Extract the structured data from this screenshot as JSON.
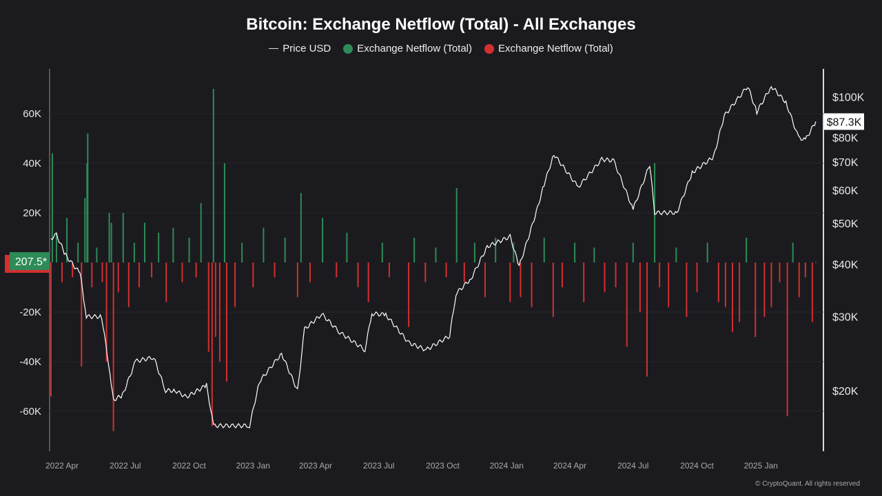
{
  "chart_data": {
    "type": "bar+line",
    "title": "Bitcoin: Exchange Netflow (Total) - All Exchanges",
    "legend": [
      "Price USD",
      "Exchange Netflow (Total)",
      "Exchange Netflow (Total)"
    ],
    "legend_placement": "top-center",
    "colors": {
      "price": "#ffffff",
      "inflow": "#2e8b57",
      "outflow": "#d32f2f",
      "background": "#1b1b1f"
    },
    "x_ticks": [
      "2022 Apr",
      "2022 Jul",
      "2022 Oct",
      "2023 Jan",
      "2023 Apr",
      "2023 Jul",
      "2023 Oct",
      "2024 Jan",
      "2024 Apr",
      "2024 Jul",
      "2024 Oct",
      "2025 Jan"
    ],
    "x_tick_dates": [
      "2022-04-01",
      "2022-07-01",
      "2022-10-01",
      "2023-01-01",
      "2023-04-01",
      "2023-07-01",
      "2023-10-01",
      "2024-01-01",
      "2024-04-01",
      "2024-07-01",
      "2024-10-01",
      "2025-01-01"
    ],
    "y_left_ticks": [
      "60K",
      "40K",
      "20K",
      "-20K",
      "-40K",
      "-60K"
    ],
    "y_left_values": [
      60000,
      40000,
      20000,
      -20000,
      -40000,
      -60000
    ],
    "y_right_ticks": [
      "$100K",
      "$80K",
      "$70K",
      "$60K",
      "$50K",
      "$40K",
      "$30K",
      "$20K"
    ],
    "y_right_values": [
      100000,
      80000,
      70000,
      60000,
      50000,
      40000,
      30000,
      20000
    ],
    "y_right_scale": "log",
    "current_netflow_label": "207.5*",
    "current_price_label": "$87.3K",
    "price": [
      [
        "2022-03-20",
        46000
      ],
      [
        "2022-03-28",
        47000
      ],
      [
        "2022-04-10",
        42000
      ],
      [
        "2022-05-01",
        38000
      ],
      [
        "2022-05-10",
        30000
      ],
      [
        "2022-06-01",
        30000
      ],
      [
        "2022-06-13",
        22000
      ],
      [
        "2022-06-18",
        19000
      ],
      [
        "2022-07-01",
        19500
      ],
      [
        "2022-07-20",
        23500
      ],
      [
        "2022-08-15",
        24000
      ],
      [
        "2022-09-01",
        20000
      ],
      [
        "2022-09-15",
        20000
      ],
      [
        "2022-10-01",
        19300
      ],
      [
        "2022-10-30",
        20600
      ],
      [
        "2022-11-09",
        16500
      ],
      [
        "2022-11-25",
        16500
      ],
      [
        "2022-12-31",
        16500
      ],
      [
        "2023-01-14",
        21000
      ],
      [
        "2023-02-15",
        24500
      ],
      [
        "2023-03-10",
        20000
      ],
      [
        "2023-03-20",
        28000
      ],
      [
        "2023-04-14",
        30400
      ],
      [
        "2023-05-10",
        27500
      ],
      [
        "2023-06-15",
        25000
      ],
      [
        "2023-06-25",
        30500
      ],
      [
        "2023-07-15",
        30300
      ],
      [
        "2023-08-17",
        26000
      ],
      [
        "2023-09-11",
        25000
      ],
      [
        "2023-10-15",
        27000
      ],
      [
        "2023-10-24",
        34000
      ],
      [
        "2023-11-15",
        37000
      ],
      [
        "2023-12-08",
        44000
      ],
      [
        "2024-01-10",
        46500
      ],
      [
        "2024-01-23",
        39500
      ],
      [
        "2024-02-15",
        52000
      ],
      [
        "2024-02-28",
        62000
      ],
      [
        "2024-03-13",
        73000
      ],
      [
        "2024-04-17",
        61000
      ],
      [
        "2024-05-21",
        71000
      ],
      [
        "2024-06-07",
        70500
      ],
      [
        "2024-07-05",
        54000
      ],
      [
        "2024-07-29",
        69000
      ],
      [
        "2024-08-05",
        53000
      ],
      [
        "2024-09-06",
        53000
      ],
      [
        "2024-09-28",
        66000
      ],
      [
        "2024-10-29",
        72000
      ],
      [
        "2024-11-13",
        90000
      ],
      [
        "2024-12-17",
        106000
      ],
      [
        "2024-12-30",
        92000
      ],
      [
        "2025-01-20",
        106000
      ],
      [
        "2025-02-10",
        97000
      ],
      [
        "2025-02-28",
        80000
      ],
      [
        "2025-03-10",
        79000
      ],
      [
        "2025-03-25",
        87300
      ]
    ],
    "netflow": [
      [
        "2022-03-20",
        -54000
      ],
      [
        "2022-03-22",
        44000
      ],
      [
        "2022-03-28",
        12000
      ],
      [
        "2022-04-05",
        -8000
      ],
      [
        "2022-04-12",
        18000
      ],
      [
        "2022-04-20",
        -6000
      ],
      [
        "2022-04-28",
        8000
      ],
      [
        "2022-05-03",
        -42000
      ],
      [
        "2022-05-08",
        26000
      ],
      [
        "2022-05-11",
        40000
      ],
      [
        "2022-05-12",
        52000
      ],
      [
        "2022-05-18",
        -10000
      ],
      [
        "2022-05-25",
        6000
      ],
      [
        "2022-06-02",
        -8000
      ],
      [
        "2022-06-08",
        -40000
      ],
      [
        "2022-06-12",
        20000
      ],
      [
        "2022-06-15",
        16000
      ],
      [
        "2022-06-18",
        -68000
      ],
      [
        "2022-06-25",
        -12000
      ],
      [
        "2022-07-02",
        20000
      ],
      [
        "2022-07-10",
        -18000
      ],
      [
        "2022-07-18",
        8000
      ],
      [
        "2022-07-25",
        -10000
      ],
      [
        "2022-08-02",
        16000
      ],
      [
        "2022-08-12",
        -6000
      ],
      [
        "2022-08-22",
        12000
      ],
      [
        "2022-09-02",
        -16000
      ],
      [
        "2022-09-12",
        14000
      ],
      [
        "2022-09-25",
        -8000
      ],
      [
        "2022-10-05",
        10000
      ],
      [
        "2022-10-15",
        -6000
      ],
      [
        "2022-10-22",
        24000
      ],
      [
        "2022-11-02",
        -36000
      ],
      [
        "2022-11-07",
        -66000
      ],
      [
        "2022-11-09",
        70000
      ],
      [
        "2022-11-12",
        -30000
      ],
      [
        "2022-11-18",
        -40000
      ],
      [
        "2022-11-25",
        40000
      ],
      [
        "2022-11-28",
        -48000
      ],
      [
        "2022-12-10",
        -18000
      ],
      [
        "2022-12-20",
        8000
      ],
      [
        "2023-01-05",
        -10000
      ],
      [
        "2023-01-20",
        14000
      ],
      [
        "2023-02-05",
        -6000
      ],
      [
        "2023-02-20",
        10000
      ],
      [
        "2023-03-10",
        -14000
      ],
      [
        "2023-03-15",
        28000
      ],
      [
        "2023-03-28",
        -8000
      ],
      [
        "2023-04-15",
        18000
      ],
      [
        "2023-05-05",
        -6000
      ],
      [
        "2023-05-20",
        12000
      ],
      [
        "2023-06-05",
        -10000
      ],
      [
        "2023-06-20",
        -16000
      ],
      [
        "2023-07-10",
        8000
      ],
      [
        "2023-07-20",
        -6000
      ],
      [
        "2023-08-17",
        -26000
      ],
      [
        "2023-08-25",
        10000
      ],
      [
        "2023-09-10",
        -8000
      ],
      [
        "2023-09-25",
        6000
      ],
      [
        "2023-10-10",
        -6000
      ],
      [
        "2023-10-25",
        30000
      ],
      [
        "2023-11-05",
        -8000
      ],
      [
        "2023-11-20",
        8000
      ],
      [
        "2023-12-05",
        -14000
      ],
      [
        "2023-12-20",
        10000
      ],
      [
        "2024-01-10",
        -16000
      ],
      [
        "2024-01-15",
        8000
      ],
      [
        "2024-01-25",
        -14000
      ],
      [
        "2024-02-10",
        -18000
      ],
      [
        "2024-02-28",
        10000
      ],
      [
        "2024-03-12",
        -22000
      ],
      [
        "2024-03-25",
        -10000
      ],
      [
        "2024-04-12",
        8000
      ],
      [
        "2024-04-25",
        -16000
      ],
      [
        "2024-05-10",
        6000
      ],
      [
        "2024-05-25",
        -12000
      ],
      [
        "2024-06-10",
        -10000
      ],
      [
        "2024-06-26",
        -34000
      ],
      [
        "2024-07-05",
        8000
      ],
      [
        "2024-07-15",
        -20000
      ],
      [
        "2024-07-25",
        -46000
      ],
      [
        "2024-08-05",
        40000
      ],
      [
        "2024-08-12",
        -10000
      ],
      [
        "2024-08-25",
        -18000
      ],
      [
        "2024-09-05",
        6000
      ],
      [
        "2024-09-20",
        -22000
      ],
      [
        "2024-10-05",
        -12000
      ],
      [
        "2024-10-20",
        8000
      ],
      [
        "2024-11-05",
        -16000
      ],
      [
        "2024-11-15",
        -18000
      ],
      [
        "2024-11-25",
        -28000
      ],
      [
        "2024-12-05",
        -24000
      ],
      [
        "2024-12-15",
        10000
      ],
      [
        "2024-12-28",
        -30000
      ],
      [
        "2025-01-10",
        -22000
      ],
      [
        "2025-01-20",
        -18000
      ],
      [
        "2025-02-01",
        -8000
      ],
      [
        "2025-02-12",
        -62000
      ],
      [
        "2025-02-20",
        8000
      ],
      [
        "2025-03-01",
        -14000
      ],
      [
        "2025-03-10",
        -6000
      ],
      [
        "2025-03-20",
        -24000
      ],
      [
        "2025-03-25",
        207.5
      ]
    ]
  },
  "footer": {
    "copyright": "© CryptoQuant. All rights reserved"
  }
}
